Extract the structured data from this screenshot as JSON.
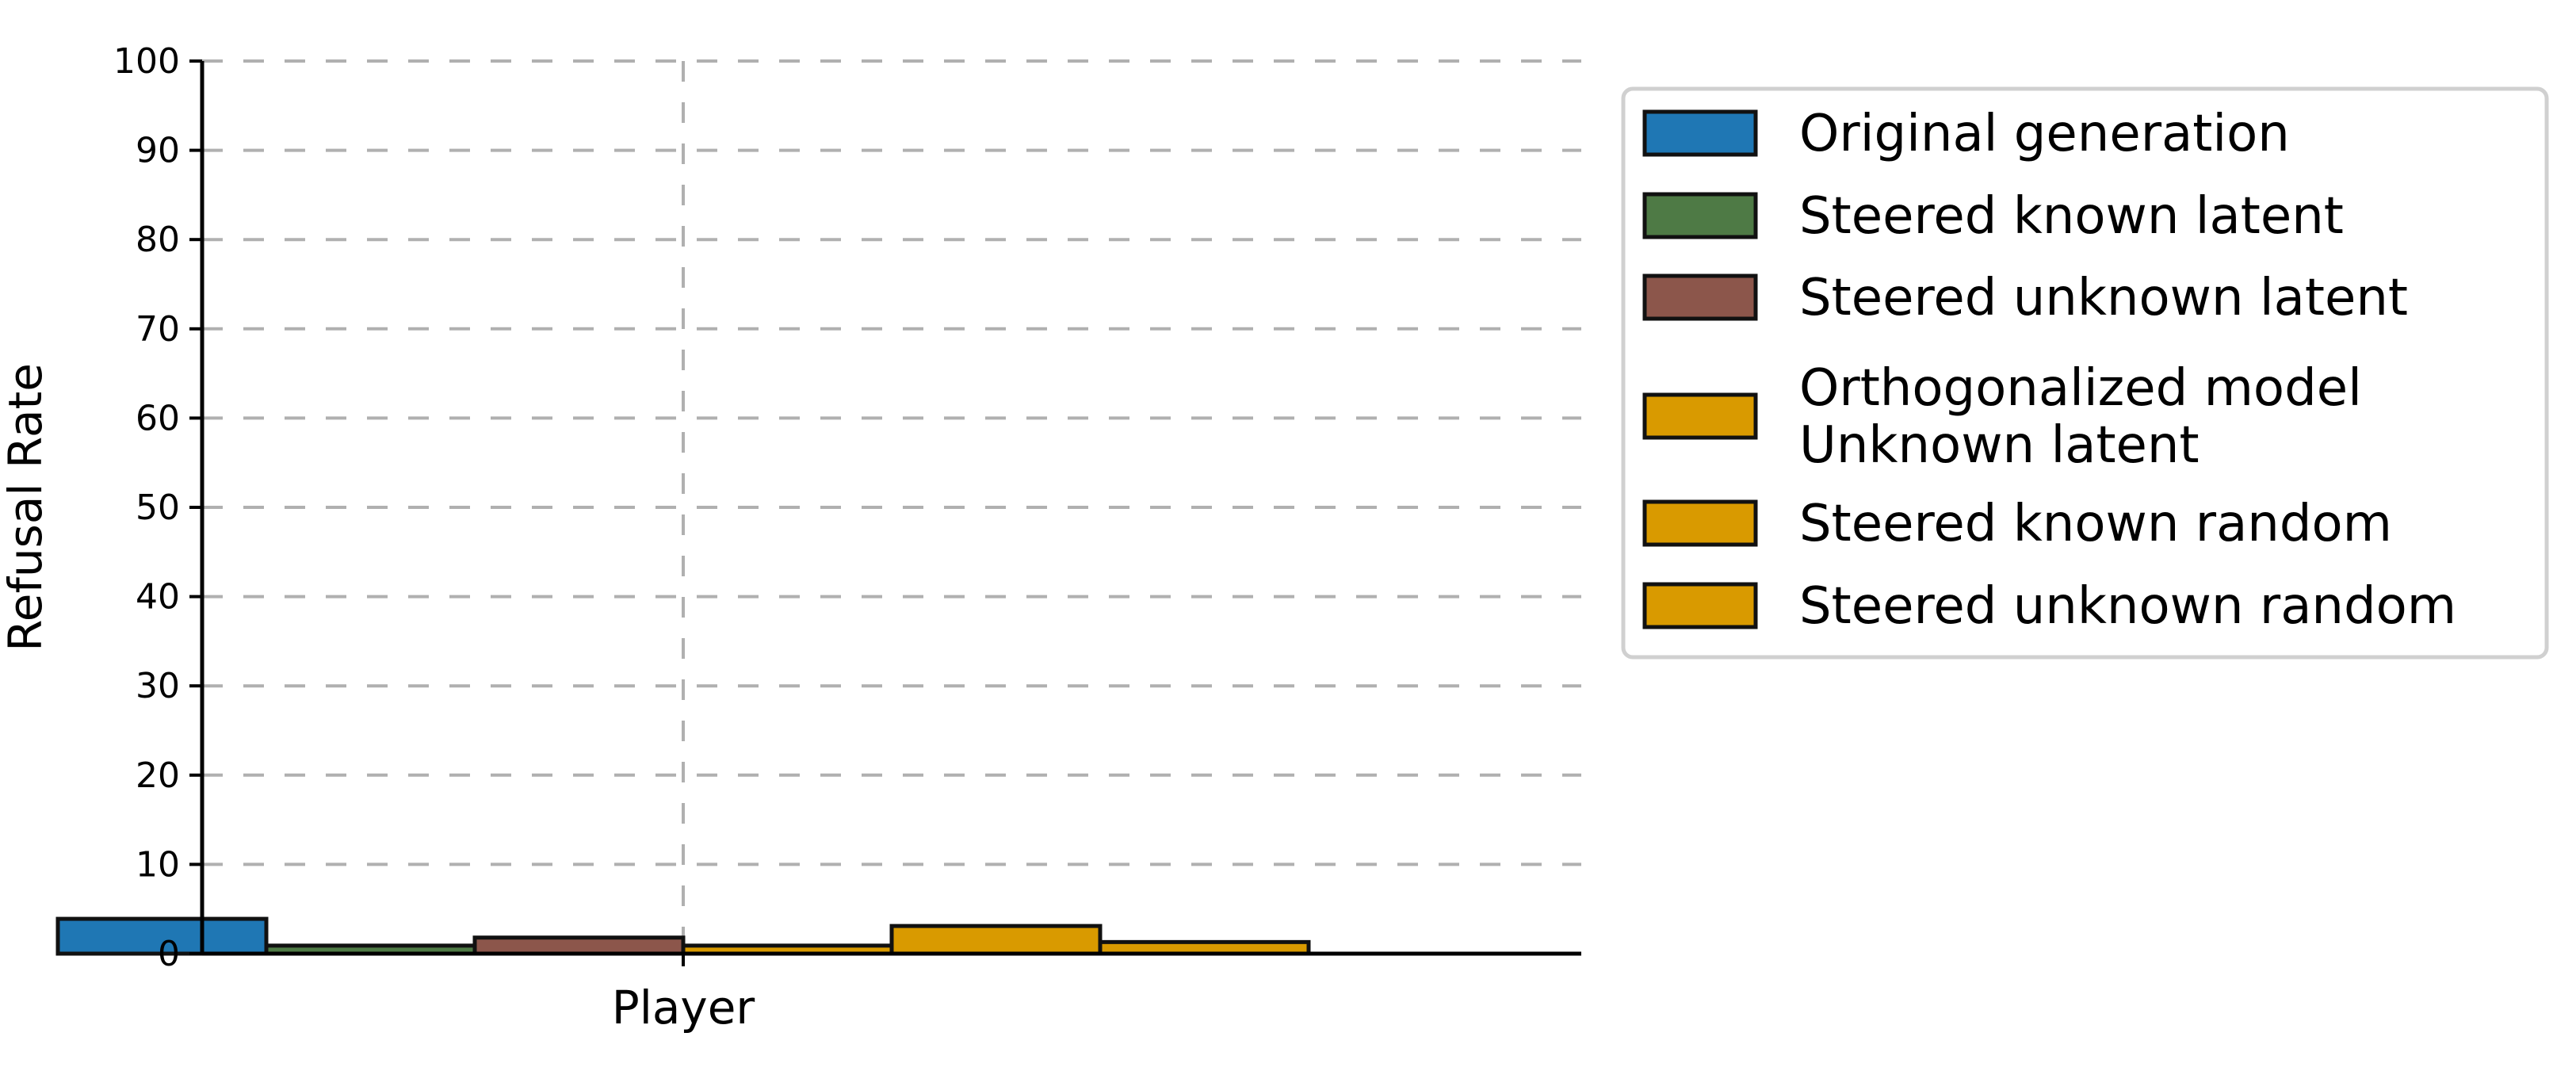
{
  "chart_data": {
    "type": "bar",
    "categories": [
      "Player"
    ],
    "ylabel": "Refusal Rate",
    "xlabel": "",
    "ylim": [
      0,
      100
    ],
    "yticks": [
      0,
      10,
      20,
      30,
      40,
      50,
      60,
      70,
      80,
      90,
      100
    ],
    "grid": true,
    "legend_position": "right",
    "series": [
      {
        "name": "Original generation",
        "values": [
          3.9
        ],
        "color": "#1f77b4"
      },
      {
        "name": "Steered known latent",
        "values": [
          0.9
        ],
        "color": "#4e7a45"
      },
      {
        "name": "Steered unknown latent",
        "values": [
          1.8
        ],
        "color": "#8c564b"
      },
      {
        "name": "Orthogonalized model\nUnknown latent",
        "values": [
          0.9
        ],
        "color": "#d99a00"
      },
      {
        "name": "Steered known random",
        "values": [
          3.1
        ],
        "color": "#d99a00"
      },
      {
        "name": "Steered unknown random",
        "values": [
          1.3
        ],
        "color": "#d99a00"
      }
    ]
  }
}
